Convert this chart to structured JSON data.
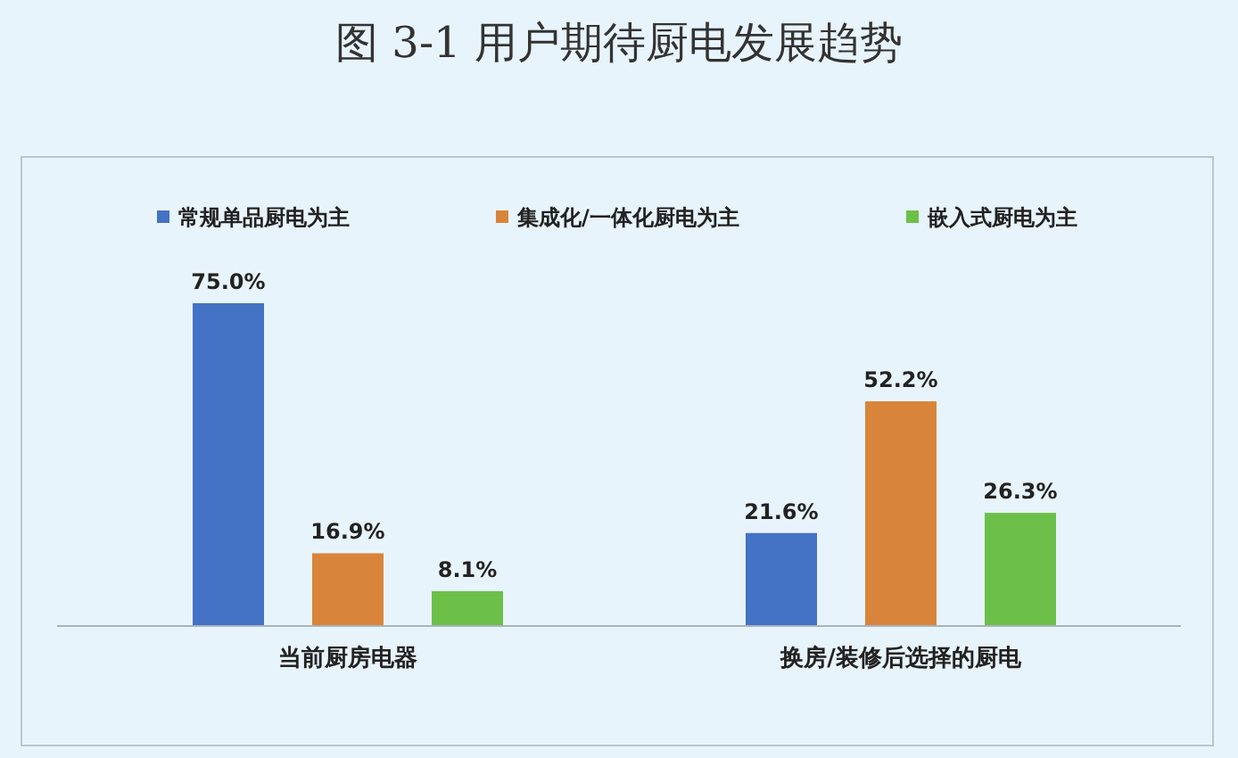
{
  "chart_data": {
    "type": "bar",
    "title": "图 3-1 用户期待厨电发展趋势",
    "categories": [
      "当前厨房电器",
      "换房/装修后选择的厨电"
    ],
    "series": [
      {
        "name": "常规单品厨电为主",
        "color": "#4472c4",
        "values": [
          75.0,
          21.6
        ],
        "value_labels": [
          "75.0%",
          "21.6%"
        ]
      },
      {
        "name": "集成化/一体化厨电为主",
        "color": "#d9843b",
        "values": [
          16.9,
          52.2
        ],
        "value_labels": [
          "16.9%",
          "52.2%"
        ]
      },
      {
        "name": "嵌入式厨电为主",
        "color": "#6cc04a",
        "values": [
          8.1,
          26.3
        ],
        "value_labels": [
          "8.1%",
          "26.3%"
        ]
      }
    ],
    "legend": "top"
  }
}
